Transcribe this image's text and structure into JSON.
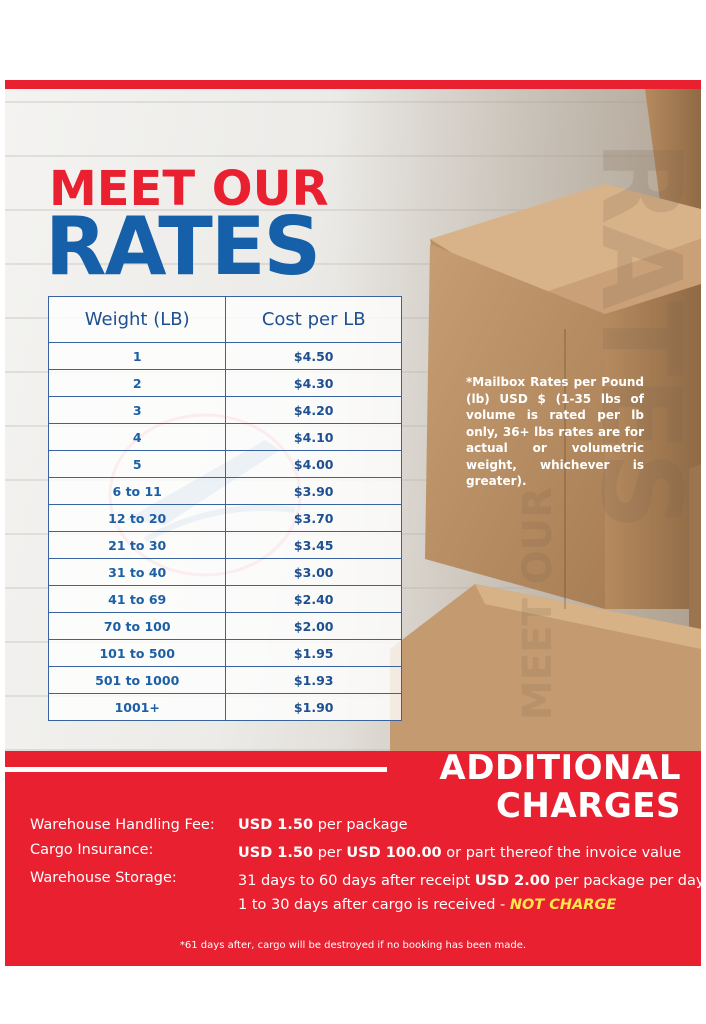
{
  "header": {
    "title_line1": "MEET OUR",
    "title_line2": "RATES",
    "background_word_vertical": "MEET OUR",
    "background_word_large": "RATES"
  },
  "rates_table": {
    "columns": [
      "Weight (LB)",
      "Cost per LB"
    ],
    "rows": [
      {
        "weight": "1",
        "cost": "$4.50"
      },
      {
        "weight": "2",
        "cost": "$4.30"
      },
      {
        "weight": "3",
        "cost": "$4.20"
      },
      {
        "weight": "4",
        "cost": "$4.10"
      },
      {
        "weight": "5",
        "cost": "$4.00"
      },
      {
        "weight": "6 to 11",
        "cost": "$3.90"
      },
      {
        "weight": "12 to 20",
        "cost": "$3.70"
      },
      {
        "weight": "21 to 30",
        "cost": "$3.45"
      },
      {
        "weight": "31 to 40",
        "cost": "$3.00"
      },
      {
        "weight": "41 to 69",
        "cost": "$2.40"
      },
      {
        "weight": "70 to 100",
        "cost": "$2.00"
      },
      {
        "weight": "101 to 500",
        "cost": "$1.95"
      },
      {
        "weight": "501 to 1000",
        "cost": "$1.93"
      },
      {
        "weight": "1001+",
        "cost": "$1.90"
      }
    ]
  },
  "note": "*Mailbox Rates per Pound (lb) USD $ (1-35 lbs of volume is rated per lb only, 36+ lbs rates are for actual or volumetric weight, whichever is greater).",
  "additional": {
    "title_line1": "ADDITIONAL",
    "title_line2": "CHARGES",
    "handling": {
      "label": "Warehouse Handling Fee:",
      "amount": "USD 1.50",
      "suffix": "per package"
    },
    "insurance": {
      "label": "Cargo Insurance:",
      "amount": "USD 1.50",
      "mid": "per",
      "base": "USD 100.00",
      "suffix": "or part thereof the invoice value"
    },
    "storage": {
      "label": "Warehouse Storage:",
      "line1_prefix": "31 days to 60 days after receipt",
      "line1_amount": "USD 2.00",
      "line1_suffix": "per package per day",
      "line2_prefix": "1 to 30 days after cargo is received -",
      "line2_highlight": "NOT CHARGE"
    },
    "footnote": "*61 days after, cargo will be destroyed if no booking has been made."
  },
  "colors": {
    "brand_red": "#e8202f",
    "brand_blue": "#1560a8",
    "highlight_yellow": "#ffe94a"
  }
}
